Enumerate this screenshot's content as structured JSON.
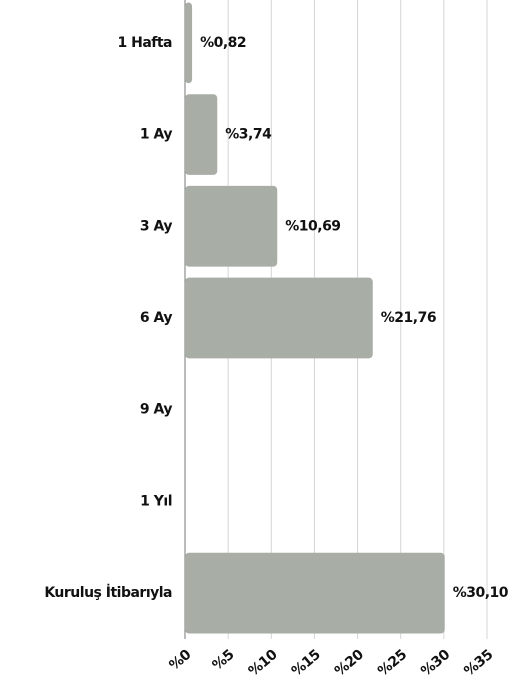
{
  "chart_data": {
    "type": "barh",
    "categories": [
      "1 Hafta",
      "1 Ay",
      "3 Ay",
      "6 Ay",
      "9 Ay",
      "1 Yıl",
      "Kuruluş İtibarıyla"
    ],
    "values": [
      0.82,
      3.74,
      10.69,
      21.76,
      null,
      null,
      30.1
    ],
    "value_labels": [
      "%0,82",
      "%3,74",
      "%10,69",
      "%21,76",
      null,
      null,
      "%30,10"
    ],
    "color": "#a8ada6",
    "xlim": [
      0,
      35
    ],
    "xticks": [
      {
        "value": 0,
        "label": "%0"
      },
      {
        "value": 5,
        "label": "%5"
      },
      {
        "value": 10,
        "label": "%10"
      },
      {
        "value": 15,
        "label": "%15"
      },
      {
        "value": 20,
        "label": "%20"
      },
      {
        "value": 25,
        "label": "%25"
      },
      {
        "value": 30,
        "label": "%30"
      },
      {
        "value": 35,
        "label": "%35"
      }
    ],
    "grid": true
  }
}
